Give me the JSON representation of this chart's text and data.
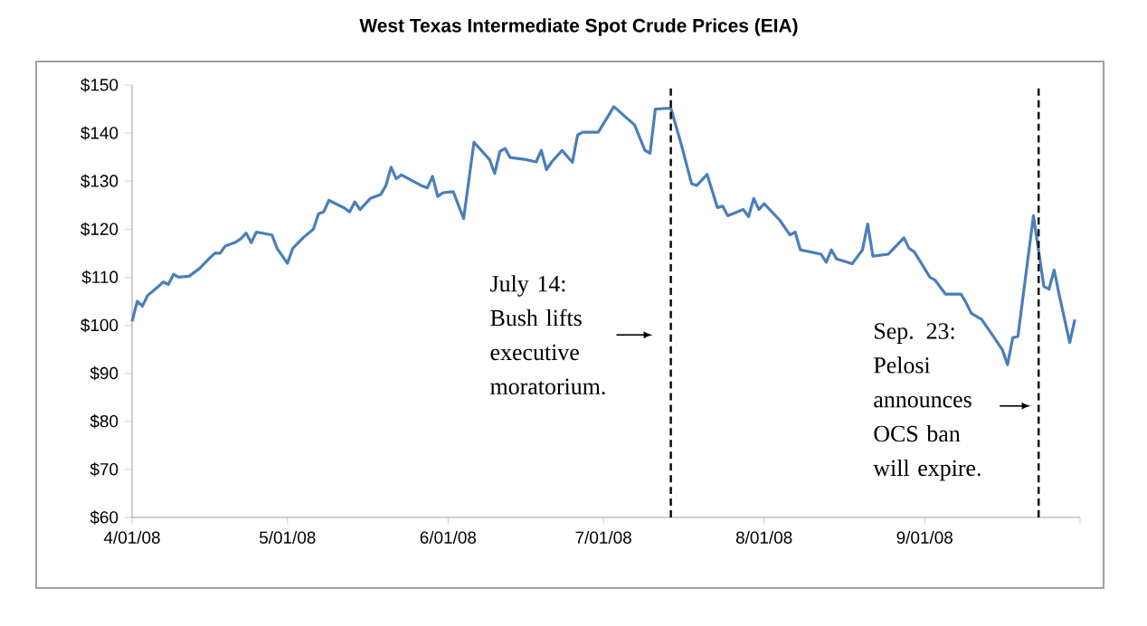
{
  "chart_data": {
    "type": "line",
    "title": "West Texas Intermediate Spot Crude Prices (EIA)",
    "x": [
      "2008-04-01",
      "2008-04-02",
      "2008-04-03",
      "2008-04-04",
      "2008-04-06",
      "2008-04-07",
      "2008-04-08",
      "2008-04-09",
      "2008-04-10",
      "2008-04-12",
      "2008-04-14",
      "2008-04-16",
      "2008-04-17",
      "2008-04-18",
      "2008-04-19",
      "2008-04-21",
      "2008-04-22",
      "2008-04-23",
      "2008-04-24",
      "2008-04-25",
      "2008-04-28",
      "2008-04-29",
      "2008-05-01",
      "2008-05-02",
      "2008-05-04",
      "2008-05-06",
      "2008-05-07",
      "2008-05-08",
      "2008-05-09",
      "2008-05-12",
      "2008-05-13",
      "2008-05-14",
      "2008-05-15",
      "2008-05-17",
      "2008-05-19",
      "2008-05-20",
      "2008-05-21",
      "2008-05-22",
      "2008-05-23",
      "2008-05-27",
      "2008-05-28",
      "2008-05-29",
      "2008-05-30",
      "2008-05-31",
      "2008-06-02",
      "2008-06-04",
      "2008-06-06",
      "2008-06-09",
      "2008-06-10",
      "2008-06-11",
      "2008-06-12",
      "2008-06-13",
      "2008-06-16",
      "2008-06-18",
      "2008-06-19",
      "2008-06-20",
      "2008-06-21",
      "2008-06-23",
      "2008-06-25",
      "2008-06-26",
      "2008-06-27",
      "2008-06-30",
      "2008-07-03",
      "2008-07-07",
      "2008-07-09",
      "2008-07-10",
      "2008-07-11",
      "2008-07-14",
      "2008-07-16",
      "2008-07-18",
      "2008-07-19",
      "2008-07-21",
      "2008-07-23",
      "2008-07-24",
      "2008-07-25",
      "2008-07-28",
      "2008-07-29",
      "2008-07-30",
      "2008-07-31",
      "2008-08-01",
      "2008-08-04",
      "2008-08-06",
      "2008-08-07",
      "2008-08-08",
      "2008-08-12",
      "2008-08-13",
      "2008-08-14",
      "2008-08-15",
      "2008-08-18",
      "2008-08-20",
      "2008-08-21",
      "2008-08-22",
      "2008-08-25",
      "2008-08-28",
      "2008-08-29",
      "2008-08-30",
      "2008-09-02",
      "2008-09-03",
      "2008-09-05",
      "2008-09-08",
      "2008-09-09",
      "2008-09-10",
      "2008-09-12",
      "2008-09-14",
      "2008-09-16",
      "2008-09-17",
      "2008-09-18",
      "2008-09-19",
      "2008-09-22",
      "2008-09-24",
      "2008-09-25",
      "2008-09-26",
      "2008-09-27",
      "2008-09-29",
      "2008-09-30"
    ],
    "series": [
      {
        "color": "#4a7ebb",
        "values": [
          100.8,
          105,
          104,
          106.2,
          108,
          109,
          108.5,
          110.6,
          110,
          110.2,
          111.8,
          114,
          115,
          115,
          116.5,
          117.3,
          118,
          119.2,
          117.2,
          119.4,
          118.8,
          116,
          112.9,
          116,
          118.2,
          120,
          123.2,
          123.6,
          126,
          124.4,
          123.6,
          125.7,
          124.1,
          126.4,
          127.2,
          129.1,
          132.9,
          130.5,
          131.3,
          129,
          128.6,
          131,
          126.8,
          127.6,
          127.8,
          122.2,
          138.1,
          134.5,
          131.6,
          136.2,
          136.8,
          134.9,
          134.5,
          134,
          136.4,
          132.4,
          134,
          136.4,
          133.9,
          139.6,
          140.2,
          140.2,
          145.5,
          141.7,
          136.4,
          135.8,
          145,
          145.2,
          137.7,
          129.5,
          129.1,
          131.4,
          124.5,
          124.8,
          122.8,
          124.1,
          122.6,
          126.4,
          124.1,
          125.3,
          121.9,
          118.8,
          119.4,
          115.7,
          114.8,
          113.1,
          115.7,
          113.8,
          112.8,
          115.7,
          121.1,
          114.4,
          114.8,
          118.2,
          116,
          115.3,
          110,
          109.4,
          106.5,
          106.5,
          104.7,
          102.5,
          101.2,
          98.1,
          94.9,
          91.8,
          97.4,
          97.7,
          122.8,
          108.1,
          107.5,
          111.5,
          106.2,
          96.4,
          101.2
        ]
      }
    ],
    "xlim": [
      "2008-04-01",
      "2008-10-01"
    ],
    "xticks": [
      {
        "value": "2008-04-01",
        "label": "4/01/08"
      },
      {
        "value": "2008-05-01",
        "label": "5/01/08"
      },
      {
        "value": "2008-06-01",
        "label": "6/01/08"
      },
      {
        "value": "2008-07-01",
        "label": "7/01/08"
      },
      {
        "value": "2008-08-01",
        "label": "8/01/08"
      },
      {
        "value": "2008-09-01",
        "label": "9/01/08"
      },
      {
        "value": "2008-10-01",
        "label": null
      }
    ],
    "ylim": [
      60,
      150
    ],
    "yticks": [
      {
        "value": 60,
        "label": "$60"
      },
      {
        "value": 70,
        "label": "$70"
      },
      {
        "value": 80,
        "label": "$80"
      },
      {
        "value": 90,
        "label": "$90"
      },
      {
        "value": 100,
        "label": "$100"
      },
      {
        "value": 110,
        "label": "$110"
      },
      {
        "value": 120,
        "label": "$120"
      },
      {
        "value": 130,
        "label": "$130"
      },
      {
        "value": 140,
        "label": "$140"
      },
      {
        "value": 150,
        "label": "$150"
      }
    ],
    "ref_lines": [
      {
        "axis": "x",
        "value": "2008-07-14",
        "label": "July 14: Bush lifts executive moratorium.",
        "color": "#000000",
        "line_style": "dashed"
      },
      {
        "axis": "x",
        "value": "2008-09-23",
        "label": "Sep. 23: Pelosi announces OCS ban will expire.",
        "color": "#000000",
        "line_style": "dashed"
      }
    ],
    "grid": false,
    "marker": "none",
    "line_style": "solid"
  }
}
